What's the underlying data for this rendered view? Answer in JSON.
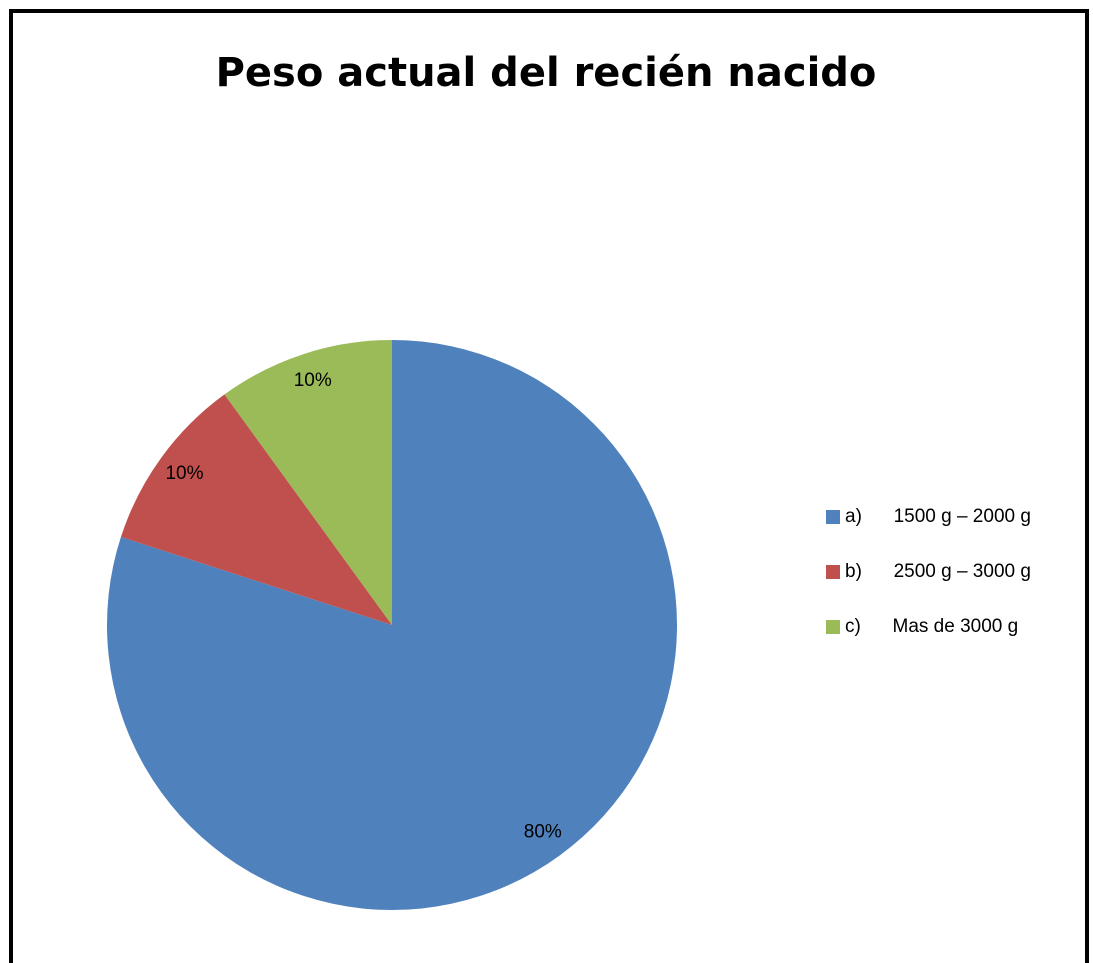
{
  "chart_data": {
    "type": "pie",
    "title": "Peso actual del recién nacido",
    "categories": [
      "a)      1500 g – 2000 g",
      "b)      2500 g – 3000 g",
      "c)      Mas de 3000 g"
    ],
    "values": [
      80,
      10,
      10
    ],
    "value_labels": [
      "80%",
      "10%",
      "10%"
    ],
    "colors": [
      "#4f81bd",
      "#c0504d",
      "#9bbb59"
    ],
    "legend": "right"
  }
}
